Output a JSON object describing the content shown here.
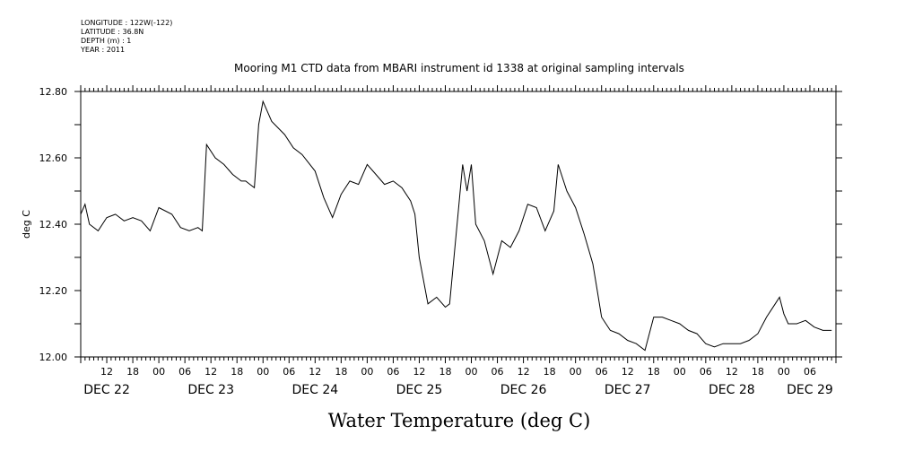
{
  "metadata": {
    "longitude": "LONGITUDE : 122W(-122)",
    "latitude": "LATITUDE : 36.8N",
    "depth": "DEPTH (m) : 1",
    "year": "YEAR : 2011"
  },
  "chart_data": {
    "type": "line",
    "title": "Mooring M1 CTD data from MBARI instrument id 1338 at original sampling intervals",
    "xlabel": "Water Temperature (deg C)",
    "ylabel": "deg C",
    "ylim": [
      12.0,
      12.8
    ],
    "xlim": [
      "2011-12-22T06:00",
      "2011-12-29T12:00"
    ],
    "grid": false,
    "y_ticks": [
      "12.00",
      "12.20",
      "12.40",
      "12.60",
      "12.80"
    ],
    "x_hour_ticks": [
      {
        "t": "2011-12-22T12:00",
        "label": "12"
      },
      {
        "t": "2011-12-22T18:00",
        "label": "18"
      },
      {
        "t": "2011-12-23T00:00",
        "label": "00"
      },
      {
        "t": "2011-12-23T06:00",
        "label": "06"
      },
      {
        "t": "2011-12-23T12:00",
        "label": "12"
      },
      {
        "t": "2011-12-23T18:00",
        "label": "18"
      },
      {
        "t": "2011-12-24T00:00",
        "label": "00"
      },
      {
        "t": "2011-12-24T06:00",
        "label": "06"
      },
      {
        "t": "2011-12-24T12:00",
        "label": "12"
      },
      {
        "t": "2011-12-24T18:00",
        "label": "18"
      },
      {
        "t": "2011-12-25T00:00",
        "label": "00"
      },
      {
        "t": "2011-12-25T06:00",
        "label": "06"
      },
      {
        "t": "2011-12-25T12:00",
        "label": "12"
      },
      {
        "t": "2011-12-25T18:00",
        "label": "18"
      },
      {
        "t": "2011-12-26T00:00",
        "label": "00"
      },
      {
        "t": "2011-12-26T06:00",
        "label": "06"
      },
      {
        "t": "2011-12-26T12:00",
        "label": "12"
      },
      {
        "t": "2011-12-26T18:00",
        "label": "18"
      },
      {
        "t": "2011-12-27T00:00",
        "label": "00"
      },
      {
        "t": "2011-12-27T06:00",
        "label": "06"
      },
      {
        "t": "2011-12-27T12:00",
        "label": "12"
      },
      {
        "t": "2011-12-27T18:00",
        "label": "18"
      },
      {
        "t": "2011-12-28T00:00",
        "label": "00"
      },
      {
        "t": "2011-12-28T06:00",
        "label": "06"
      },
      {
        "t": "2011-12-28T12:00",
        "label": "12"
      },
      {
        "t": "2011-12-28T18:00",
        "label": "18"
      },
      {
        "t": "2011-12-29T00:00",
        "label": "00"
      },
      {
        "t": "2011-12-29T06:00",
        "label": "06"
      }
    ],
    "x_date_labels": [
      {
        "t": "2011-12-22T12:00",
        "label": "DEC 22"
      },
      {
        "t": "2011-12-23T12:00",
        "label": "DEC 23"
      },
      {
        "t": "2011-12-24T12:00",
        "label": "DEC 24"
      },
      {
        "t": "2011-12-25T12:00",
        "label": "DEC 25"
      },
      {
        "t": "2011-12-26T12:00",
        "label": "DEC 26"
      },
      {
        "t": "2011-12-27T12:00",
        "label": "DEC 27"
      },
      {
        "t": "2011-12-28T12:00",
        "label": "DEC 28"
      },
      {
        "t": "2011-12-29T06:00",
        "label": "DEC 29"
      }
    ],
    "series": [
      {
        "x": [
          "2011-12-22T06:00",
          "2011-12-22T07:00",
          "2011-12-22T08:00",
          "2011-12-22T10:00",
          "2011-12-22T12:00",
          "2011-12-22T14:00",
          "2011-12-22T16:00",
          "2011-12-22T18:00",
          "2011-12-22T20:00",
          "2011-12-22T22:00",
          "2011-12-23T00:00",
          "2011-12-23T03:00",
          "2011-12-23T05:00",
          "2011-12-23T07:00",
          "2011-12-23T09:00",
          "2011-12-23T10:00",
          "2011-12-23T11:00",
          "2011-12-23T13:00",
          "2011-12-23T15:00",
          "2011-12-23T17:00",
          "2011-12-23T19:00",
          "2011-12-23T20:00",
          "2011-12-23T21:00",
          "2011-12-23T22:00",
          "2011-12-23T23:00",
          "2011-12-24T00:00",
          "2011-12-24T02:00",
          "2011-12-24T05:00",
          "2011-12-24T07:00",
          "2011-12-24T09:00",
          "2011-12-24T12:00",
          "2011-12-24T14:00",
          "2011-12-24T16:00",
          "2011-12-24T18:00",
          "2011-12-24T20:00",
          "2011-12-24T22:00",
          "2011-12-25T00:00",
          "2011-12-25T02:00",
          "2011-12-25T04:00",
          "2011-12-25T06:00",
          "2011-12-25T08:00",
          "2011-12-25T10:00",
          "2011-12-25T11:00",
          "2011-12-25T12:00",
          "2011-12-25T14:00",
          "2011-12-25T16:00",
          "2011-12-25T18:00",
          "2011-12-25T19:00",
          "2011-12-25T21:00",
          "2011-12-25T22:00",
          "2011-12-25T23:00",
          "2011-12-26T00:00",
          "2011-12-26T01:00",
          "2011-12-26T03:00",
          "2011-12-26T05:00",
          "2011-12-26T07:00",
          "2011-12-26T09:00",
          "2011-12-26T11:00",
          "2011-12-26T13:00",
          "2011-12-26T15:00",
          "2011-12-26T17:00",
          "2011-12-26T19:00",
          "2011-12-26T20:00",
          "2011-12-26T22:00",
          "2011-12-27T00:00",
          "2011-12-27T02:00",
          "2011-12-27T04:00",
          "2011-12-27T05:00",
          "2011-12-27T06:00",
          "2011-12-27T08:00",
          "2011-12-27T10:00",
          "2011-12-27T12:00",
          "2011-12-27T14:00",
          "2011-12-27T16:00",
          "2011-12-27T18:00",
          "2011-12-27T20:00",
          "2011-12-27T22:00",
          "2011-12-28T00:00",
          "2011-12-28T02:00",
          "2011-12-28T04:00",
          "2011-12-28T06:00",
          "2011-12-28T08:00",
          "2011-12-28T10:00",
          "2011-12-28T12:00",
          "2011-12-28T14:00",
          "2011-12-28T16:00",
          "2011-12-28T18:00",
          "2011-12-28T20:00",
          "2011-12-28T22:00",
          "2011-12-28T23:00",
          "2011-12-29T00:00",
          "2011-12-29T01:00",
          "2011-12-29T03:00",
          "2011-12-29T05:00",
          "2011-12-29T07:00",
          "2011-12-29T09:00",
          "2011-12-29T11:00"
        ],
        "y": [
          12.43,
          12.46,
          12.4,
          12.38,
          12.42,
          12.43,
          12.41,
          12.42,
          12.41,
          12.38,
          12.45,
          12.43,
          12.39,
          12.38,
          12.39,
          12.38,
          12.64,
          12.6,
          12.58,
          12.55,
          12.53,
          12.53,
          12.52,
          12.51,
          12.7,
          12.77,
          12.71,
          12.67,
          12.63,
          12.61,
          12.56,
          12.48,
          12.42,
          12.49,
          12.53,
          12.52,
          12.58,
          12.55,
          12.52,
          12.53,
          12.51,
          12.47,
          12.43,
          12.3,
          12.16,
          12.18,
          12.15,
          12.16,
          12.44,
          12.58,
          12.5,
          12.58,
          12.4,
          12.35,
          12.25,
          12.35,
          12.33,
          12.38,
          12.46,
          12.45,
          12.38,
          12.44,
          12.58,
          12.5,
          12.45,
          12.37,
          12.28,
          12.2,
          12.12,
          12.08,
          12.07,
          12.05,
          12.04,
          12.02,
          12.12,
          12.12,
          12.11,
          12.1,
          12.08,
          12.07,
          12.04,
          12.03,
          12.04,
          12.04,
          12.04,
          12.05,
          12.07,
          12.12,
          12.16,
          12.18,
          12.13,
          12.1,
          12.1,
          12.11,
          12.09,
          12.08,
          12.08
        ]
      }
    ]
  }
}
